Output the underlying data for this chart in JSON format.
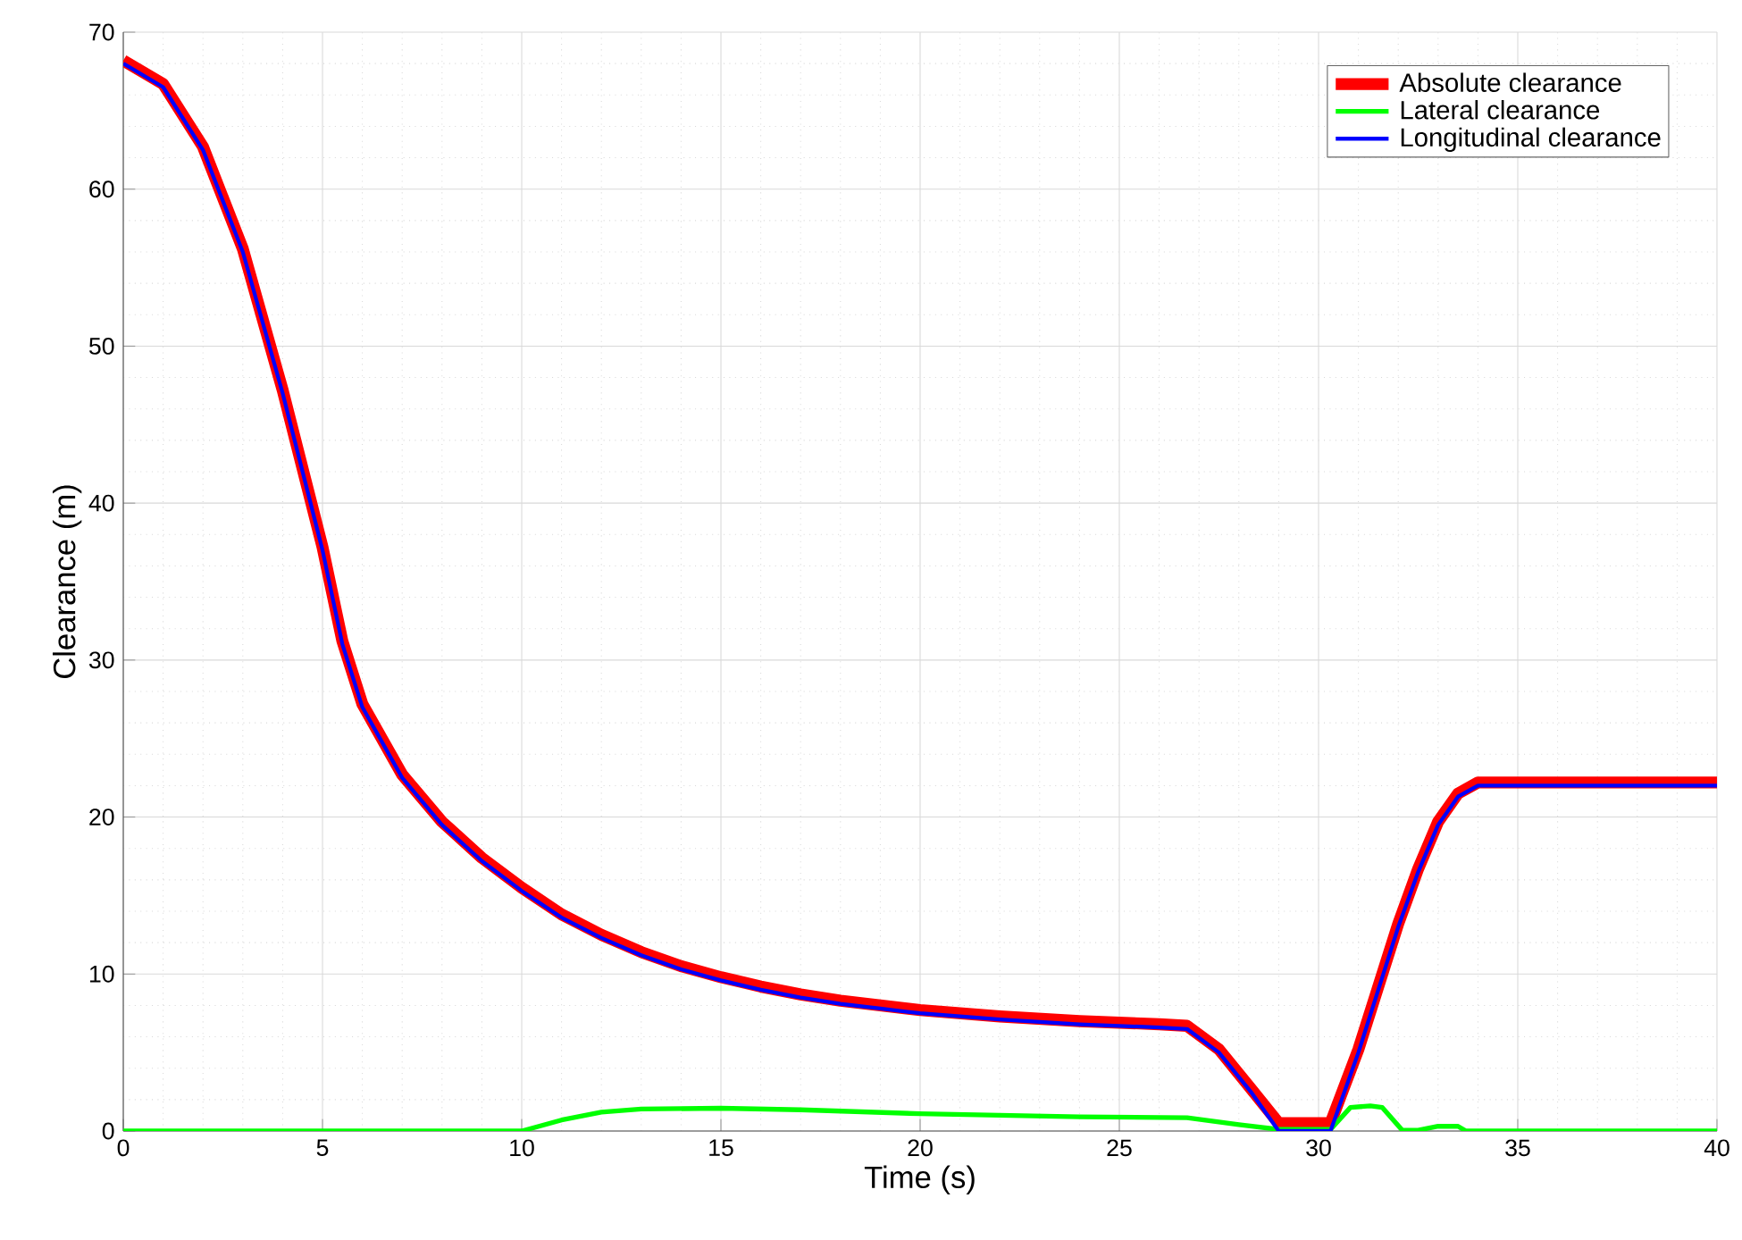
{
  "chart_data": {
    "type": "line",
    "xlabel": "Time (s)",
    "ylabel": "Clearance (m)",
    "xlim": [
      0,
      40
    ],
    "ylim": [
      0,
      70
    ],
    "xticks": [
      0,
      5,
      10,
      15,
      20,
      25,
      30,
      35,
      40
    ],
    "yticks": [
      0,
      10,
      20,
      30,
      40,
      50,
      60,
      70
    ],
    "grid": true,
    "legend": "top right",
    "marker": "none",
    "line_style": "solid",
    "series": [
      {
        "name": "Absolute clearance",
        "color": "#ff0000",
        "x": [
          0,
          1,
          2,
          3,
          4,
          5,
          5.5,
          6,
          7,
          8,
          9,
          10,
          11,
          12,
          13,
          14,
          15,
          16,
          17,
          18,
          19,
          20,
          22,
          24,
          26,
          26.7,
          27.5,
          28.3,
          29,
          30.3,
          31,
          31.5,
          32,
          32.5,
          33,
          33.5,
          34,
          40
        ],
        "values": [
          68.2,
          66.7,
          62.7,
          56.2,
          47.2,
          37.2,
          31.2,
          27.2,
          22.7,
          19.7,
          17.4,
          15.5,
          13.8,
          12.5,
          11.4,
          10.5,
          9.8,
          9.2,
          8.7,
          8.3,
          8.0,
          7.7,
          7.3,
          7.0,
          6.8,
          6.7,
          5.2,
          2.7,
          0.5,
          0.5,
          5.2,
          9.2,
          13.2,
          16.7,
          19.7,
          21.5,
          22.2,
          22.2
        ]
      },
      {
        "name": "Lateral clearance",
        "color": "#00ff00",
        "x": [
          0,
          10,
          11,
          12,
          13,
          15,
          17,
          20,
          24,
          26.7,
          28,
          29,
          30.3,
          30.8,
          31.3,
          31.6,
          32.1,
          32.5,
          33,
          33.5,
          33.7,
          40
        ],
        "values": [
          0,
          0,
          0.7,
          1.2,
          1.4,
          1.45,
          1.35,
          1.1,
          0.9,
          0.85,
          0.4,
          0.1,
          0.1,
          1.5,
          1.6,
          1.5,
          0.05,
          0.05,
          0.3,
          0.3,
          0,
          0
        ]
      },
      {
        "name": "Longitudinal clearance",
        "color": "#0000ff",
        "x": [
          0,
          1,
          2,
          3,
          4,
          5,
          5.5,
          6,
          7,
          8,
          9,
          10,
          11,
          12,
          13,
          14,
          15,
          16,
          17,
          18,
          19,
          20,
          22,
          24,
          26,
          26.7,
          27.5,
          28.3,
          29,
          30.3,
          31,
          31.5,
          32,
          32.5,
          33,
          33.5,
          34,
          40
        ],
        "values": [
          68.0,
          66.5,
          62.5,
          56.0,
          47.0,
          37.0,
          31.0,
          27.0,
          22.5,
          19.5,
          17.2,
          15.3,
          13.6,
          12.3,
          11.2,
          10.3,
          9.6,
          9.0,
          8.5,
          8.1,
          7.8,
          7.5,
          7.1,
          6.8,
          6.6,
          6.5,
          5.0,
          2.5,
          0,
          0,
          5.0,
          9.0,
          13.0,
          16.5,
          19.5,
          21.3,
          22.0,
          22.0
        ]
      }
    ]
  }
}
